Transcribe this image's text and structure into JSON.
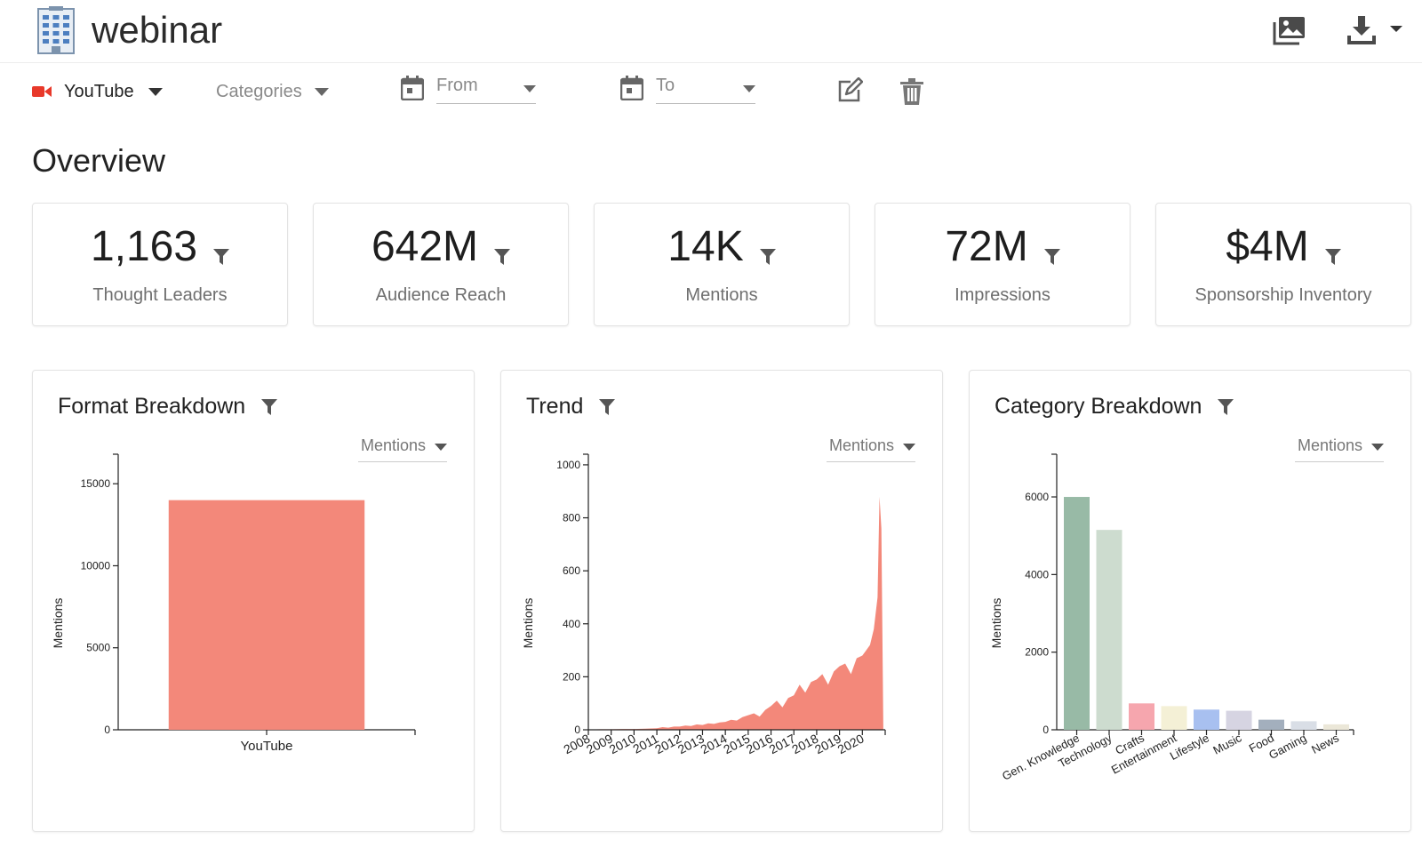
{
  "app": {
    "title": "webinar"
  },
  "filters": {
    "platform": "YouTube",
    "categories_placeholder": "Categories",
    "from_placeholder": "From",
    "to_placeholder": "To"
  },
  "overview": {
    "title": "Overview",
    "kpis": [
      {
        "value": "1,163",
        "label": "Thought Leaders"
      },
      {
        "value": "642M",
        "label": "Audience Reach"
      },
      {
        "value": "14K",
        "label": "Mentions"
      },
      {
        "value": "72M",
        "label": "Impressions"
      },
      {
        "value": "$4M",
        "label": "Sponsorship Inventory"
      }
    ]
  },
  "panels": {
    "format": {
      "title": "Format Breakdown",
      "metric": "Mentions"
    },
    "trend": {
      "title": "Trend",
      "metric": "Mentions"
    },
    "category": {
      "title": "Category Breakdown",
      "metric": "Mentions"
    }
  },
  "colors": {
    "youtube_red": "#e8392a",
    "format_bar": "#f3887a",
    "trend_area": "#f3887a",
    "category_bars": [
      "#98baa6",
      "#cddccf",
      "#f6a6ae",
      "#f4f0d6",
      "#a8c0f0",
      "#d6d4e2",
      "#a3afbd",
      "#d9dee6",
      "#ebe7d8"
    ]
  },
  "icons": {
    "logo": "building-icon",
    "gallery": "image-gallery-icon",
    "download": "download-icon",
    "platform": "video-camera-icon",
    "calendar": "calendar-icon",
    "edit": "edit-icon",
    "trash": "trash-icon",
    "filter": "filter-icon"
  },
  "chart_data": [
    {
      "type": "bar",
      "categories": [
        "YouTube"
      ],
      "values": [
        14000
      ],
      "xlabel": "",
      "ylabel": "Mentions",
      "ylim": [
        0,
        16800
      ],
      "yticks": [
        0,
        5000,
        10000,
        15000
      ],
      "grid": false
    },
    {
      "type": "area",
      "xlabel": "",
      "ylabel": "Mentions",
      "xlim": [
        "2008-01",
        "2020-12"
      ],
      "ylim": [
        0,
        1040
      ],
      "xticks": [
        "2008",
        "2009",
        "2010",
        "2011",
        "2012",
        "2013",
        "2014",
        "2015",
        "2016",
        "2017",
        "2018",
        "2019",
        "2020"
      ],
      "yticks": [
        0,
        200,
        400,
        600,
        800,
        1000
      ],
      "grid": false,
      "series": [
        {
          "x": [
            "2008-01",
            "2008-07",
            "2009-01",
            "2009-07",
            "2010-01",
            "2010-07",
            "2011-01",
            "2011-04",
            "2011-07",
            "2011-10",
            "2012-01",
            "2012-04",
            "2012-07",
            "2012-10",
            "2013-01",
            "2013-04",
            "2013-07",
            "2013-10",
            "2014-01",
            "2014-04",
            "2014-07",
            "2014-10",
            "2015-01",
            "2015-04",
            "2015-07",
            "2015-10",
            "2016-01",
            "2016-04",
            "2016-07",
            "2016-10",
            "2017-01",
            "2017-04",
            "2017-07",
            "2017-10",
            "2018-01",
            "2018-04",
            "2018-07",
            "2018-10",
            "2019-01",
            "2019-04",
            "2019-07",
            "2019-10",
            "2020-01",
            "2020-03",
            "2020-05",
            "2020-07",
            "2020-09",
            "2020-10",
            "2020-11",
            "2020-12"
          ],
          "values": [
            1,
            2,
            2,
            3,
            3,
            4,
            6,
            10,
            8,
            12,
            12,
            16,
            14,
            20,
            18,
            24,
            22,
            28,
            30,
            38,
            35,
            48,
            55,
            62,
            50,
            75,
            90,
            110,
            85,
            120,
            130,
            170,
            140,
            180,
            190,
            210,
            170,
            220,
            240,
            250,
            210,
            270,
            280,
            300,
            320,
            380,
            500,
            880,
            760,
            0
          ]
        }
      ]
    },
    {
      "type": "bar",
      "categories": [
        "Gen. Knowledge",
        "Technology",
        "Crafts",
        "Entertainment",
        "Lifestyle",
        "Music",
        "Food",
        "Gaming",
        "News"
      ],
      "values": [
        6000,
        5150,
        680,
        610,
        520,
        490,
        260,
        220,
        140
      ],
      "xlabel": "",
      "ylabel": "Mentions",
      "ylim": [
        0,
        7100
      ],
      "yticks": [
        0,
        2000,
        4000,
        6000
      ],
      "grid": false
    }
  ]
}
